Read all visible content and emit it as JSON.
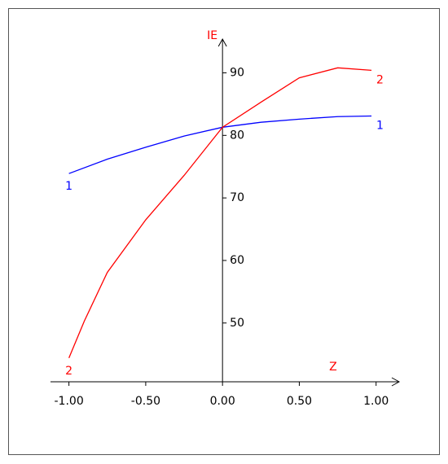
{
  "chart_data": {
    "type": "line",
    "x_label": "Z",
    "y_label": "IE",
    "xlim": [
      -1.12,
      1.15
    ],
    "xticks": [
      {
        "value": -1,
        "label": "-1.00"
      },
      {
        "value": -0.5,
        "label": "-0.50"
      },
      {
        "value": 0,
        "label": "0.00"
      },
      {
        "value": 0.5,
        "label": "0.50"
      },
      {
        "value": 1,
        "label": "1.00"
      }
    ],
    "ylim": [
      40.6,
      95.4
    ],
    "yticks": [
      50,
      60,
      70,
      80,
      90
    ],
    "series": [
      {
        "name": "1",
        "color": "#0000ff",
        "x": [
          -1,
          -0.75,
          -0.5,
          -0.25,
          0,
          0.25,
          0.5,
          0.75,
          0.97
        ],
        "values": [
          73.9,
          76.2,
          78.1,
          79.9,
          81.3,
          82.1,
          82.6,
          83.0,
          83.1
        ]
      },
      {
        "name": "2",
        "color": "#ff0000",
        "x": [
          -1,
          -0.9,
          -0.75,
          -0.5,
          -0.25,
          0,
          0.25,
          0.5,
          0.75,
          0.97
        ],
        "values": [
          44.4,
          50.3,
          58.1,
          66.5,
          73.6,
          81.3,
          85.3,
          89.2,
          90.8,
          90.4
        ]
      }
    ]
  }
}
